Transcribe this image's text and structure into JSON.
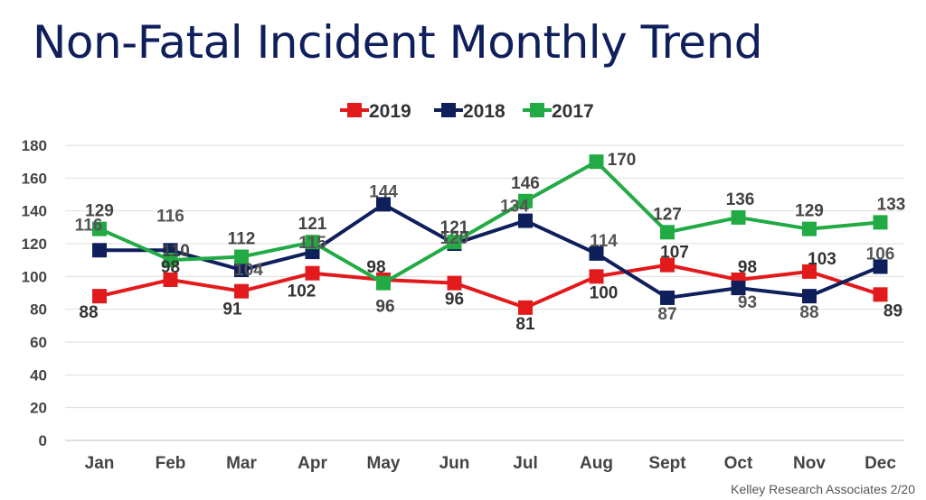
{
  "page": {
    "title": "Non-Fatal Incident Monthly Trend",
    "footer": "Kelley Research Associates 2/20"
  },
  "chart_data": {
    "type": "line",
    "title": "",
    "xlabel": "",
    "ylabel": "",
    "categories": [
      "Jan",
      "Feb",
      "Mar",
      "Apr",
      "May",
      "Jun",
      "Jul",
      "Aug",
      "Sept",
      "Oct",
      "Nov",
      "Dec"
    ],
    "ylim": [
      0,
      180
    ],
    "yticks": [
      0,
      20,
      40,
      60,
      80,
      100,
      120,
      140,
      160,
      180
    ],
    "grid": true,
    "legend_position": "top",
    "series": [
      {
        "name": "2019",
        "color": "#e31a1c",
        "values": [
          88,
          98,
          91,
          102,
          98,
          96,
          81,
          100,
          107,
          98,
          103,
          89
        ]
      },
      {
        "name": "2018",
        "color": "#0f1f5c",
        "values": [
          116,
          116,
          104,
          115,
          144,
          120,
          134,
          114,
          87,
          93,
          88,
          106
        ]
      },
      {
        "name": "2017",
        "color": "#22aa44",
        "values": [
          129,
          110,
          112,
          121,
          96,
          121,
          146,
          170,
          127,
          136,
          129,
          133
        ]
      }
    ]
  }
}
